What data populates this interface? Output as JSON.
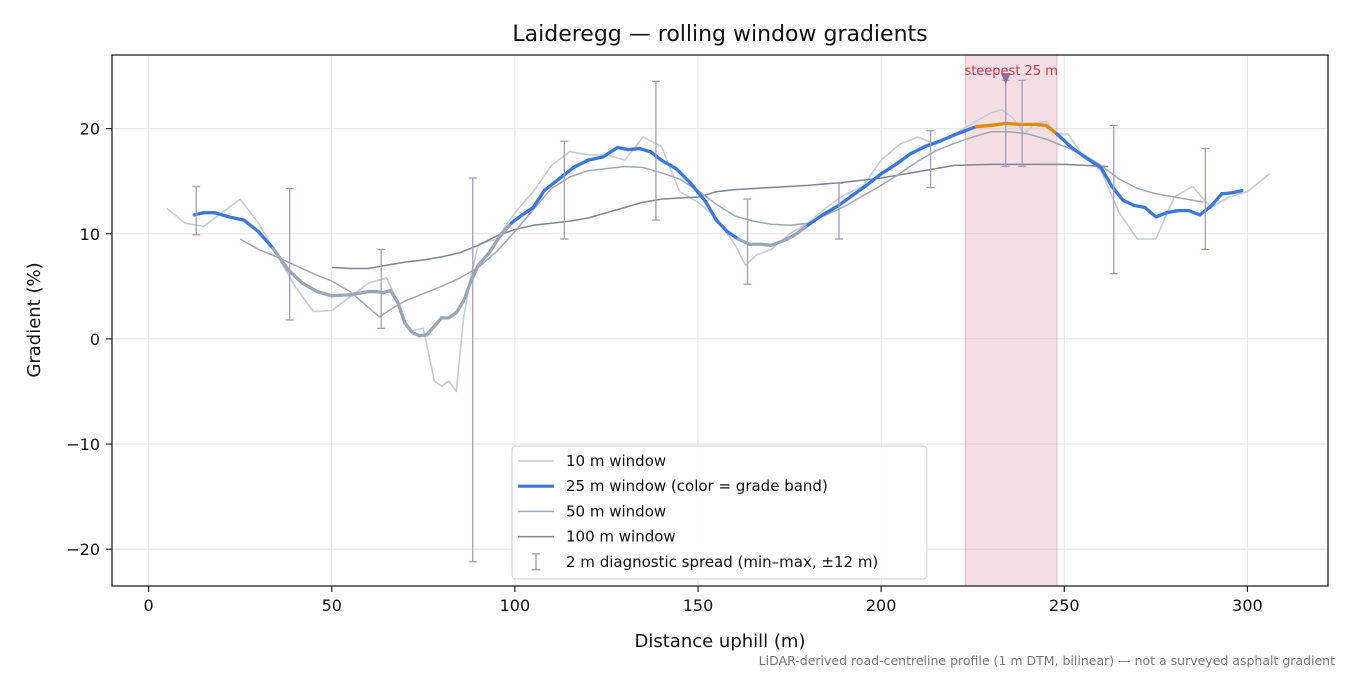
{
  "chart_data": {
    "type": "line",
    "title": "Laideregg — rolling window gradients",
    "xlabel": "Distance uphill (m)",
    "ylabel": "Gradient (%)",
    "xlim": [
      -10,
      322
    ],
    "ylim": [
      -23.5,
      27
    ],
    "x_ticks": [
      0,
      50,
      100,
      150,
      200,
      250,
      300
    ],
    "y_ticks": [
      -20,
      -10,
      0,
      10,
      20
    ],
    "x_tick_labels": [
      "0",
      "50",
      "100",
      "150",
      "200",
      "250",
      "300"
    ],
    "y_tick_labels": [
      "−20",
      "−10",
      "0",
      "10",
      "20"
    ],
    "grid": true,
    "legend_position": "lower-center",
    "footnote": "LiDAR-derived road-centreline profile (1 m DTM, bilinear) — not a surveyed asphalt gradient",
    "steepest_band": {
      "x_start": 223,
      "x_end": 248,
      "label": "steepest 25 m",
      "marker_x": 234,
      "marker_y": 24.8,
      "color": "#d9808f"
    },
    "colors": {
      "w10": "#c6cdd8",
      "w25_blue": "#3b78d8",
      "w25_grey": "#98a6b8",
      "w25_orange": "#e08a00",
      "w50": "#a2a7b8",
      "w100": "#7f8594",
      "errorbar": "#a49ac3",
      "annotation": "#c93a4f"
    },
    "legend": [
      {
        "label": "10 m window",
        "kind": "line",
        "color": "#c6cdd8",
        "width": 1.5
      },
      {
        "label": "25 m window (color = grade band)",
        "kind": "line",
        "color": "#3b78d8",
        "width": 3.2
      },
      {
        "label": "50 m window",
        "kind": "line",
        "color": "#a2a7b8",
        "width": 1.5
      },
      {
        "label": "100 m window",
        "kind": "line",
        "color": "#7f8594",
        "width": 1.5
      },
      {
        "label": "2 m diagnostic spread (min–max, ±12 m)",
        "kind": "errorbar",
        "color": "#a49ac3",
        "width": 1.3
      }
    ],
    "series": [
      {
        "name": "10 m window",
        "x": [
          5,
          10,
          15,
          20,
          25,
          30,
          35,
          40,
          45,
          50,
          55,
          60,
          65,
          68,
          70,
          72,
          75,
          78,
          80,
          82,
          84,
          86,
          88,
          90,
          95,
          100,
          105,
          110,
          115,
          120,
          125,
          130,
          135,
          140,
          145,
          150,
          155,
          160,
          163,
          166,
          170,
          175,
          180,
          185,
          190,
          195,
          200,
          205,
          210,
          215,
          220,
          225,
          230,
          233,
          236,
          239,
          242,
          245,
          248,
          251,
          255,
          260,
          265,
          270,
          275,
          280,
          285,
          290,
          295,
          300,
          306
        ],
        "y": [
          12.4,
          11,
          10.7,
          12,
          13.3,
          11,
          8,
          5,
          2.6,
          2.7,
          4,
          5.3,
          5.8,
          3.5,
          1.5,
          0.8,
          1,
          -4,
          -4.5,
          -4,
          -5,
          2,
          6,
          9,
          9.5,
          12,
          14,
          16.5,
          17.8,
          17.5,
          17.5,
          17,
          19.2,
          18.3,
          14,
          13,
          11.5,
          9,
          7,
          8,
          8.5,
          10,
          11,
          12.5,
          13.7,
          14.5,
          17,
          18.5,
          19.2,
          18.5,
          19.5,
          20.5,
          21.5,
          21.8,
          21,
          19.5,
          20.5,
          20.7,
          19.5,
          19.5,
          17.5,
          16,
          12,
          9.5,
          9.5,
          13.5,
          14.5,
          12.5,
          13.5,
          14,
          15.7
        ]
      },
      {
        "name": "25 m window",
        "x": [
          12.5,
          15,
          18,
          22,
          26,
          30,
          34,
          38,
          42,
          46,
          50,
          55,
          60,
          62,
          64,
          66,
          68,
          70,
          72,
          74,
          76,
          78,
          80,
          82,
          84,
          86,
          88,
          90,
          93,
          96,
          99,
          102,
          105,
          108,
          112,
          116,
          120,
          124,
          128,
          131,
          134,
          137,
          140,
          144,
          148,
          152,
          155,
          158,
          161,
          164,
          167,
          170,
          173,
          176,
          180,
          184,
          188,
          192,
          196,
          200,
          204,
          208,
          212,
          216,
          220,
          223,
          226,
          230,
          234,
          238,
          242,
          245,
          248,
          252,
          256,
          260,
          263,
          266,
          269,
          272,
          275,
          278,
          281,
          284,
          287,
          290,
          293,
          296,
          298.5
        ],
        "y": [
          11.8,
          12,
          12,
          11.6,
          11.3,
          10.2,
          8.6,
          6.6,
          5.3,
          4.5,
          4.1,
          4.2,
          4.5,
          4.5,
          4.4,
          4.6,
          3.5,
          1.5,
          0.6,
          0.3,
          0.4,
          1.2,
          2,
          2,
          2.5,
          3.6,
          5.5,
          7,
          8.2,
          9.8,
          11,
          11.8,
          12.5,
          14.1,
          15.2,
          16.3,
          17,
          17.3,
          18.2,
          18,
          18.1,
          17.8,
          17,
          16.2,
          14.8,
          13.1,
          11.3,
          10.2,
          9.5,
          9,
          9,
          8.9,
          9.3,
          9.8,
          10.8,
          11.8,
          12.6,
          13.6,
          14.6,
          15.7,
          16.6,
          17.6,
          18.3,
          18.8,
          19.4,
          19.8,
          20.2,
          20.3,
          20.5,
          20.4,
          20.4,
          20.3,
          19.5,
          18.2,
          17.2,
          16.3,
          14.5,
          13.2,
          12.7,
          12.5,
          11.6,
          12,
          12.2,
          12.2,
          11.8,
          12.6,
          13.8,
          13.9,
          14.1
        ],
        "band_colors": [
          "blue",
          "blue",
          "blue",
          "blue",
          "blue",
          "blue",
          "grey",
          "grey",
          "grey",
          "grey",
          "grey",
          "grey",
          "grey",
          "grey",
          "grey",
          "grey",
          "grey",
          "grey",
          "grey",
          "grey",
          "grey",
          "grey",
          "grey",
          "grey",
          "grey",
          "grey",
          "grey",
          "grey",
          "grey",
          "grey",
          "blue",
          "blue",
          "blue",
          "blue",
          "blue",
          "blue",
          "blue",
          "blue",
          "blue",
          "blue",
          "blue",
          "blue",
          "blue",
          "blue",
          "blue",
          "blue",
          "blue",
          "blue",
          "grey",
          "grey",
          "grey",
          "grey",
          "grey",
          "grey",
          "blue",
          "blue",
          "blue",
          "blue",
          "blue",
          "blue",
          "blue",
          "blue",
          "blue",
          "blue",
          "blue",
          "blue",
          "orange",
          "orange",
          "orange",
          "orange",
          "orange",
          "orange",
          "blue",
          "blue",
          "blue",
          "blue",
          "blue",
          "blue",
          "blue",
          "blue",
          "blue",
          "blue",
          "blue",
          "blue",
          "blue",
          "blue",
          "blue",
          "blue",
          "blue"
        ]
      },
      {
        "name": "50 m window",
        "x": [
          25,
          30,
          35,
          40,
          45,
          50,
          55,
          60,
          63,
          66,
          70,
          75,
          80,
          85,
          90,
          95,
          100,
          105,
          110,
          115,
          120,
          125,
          130,
          135,
          140,
          145,
          150,
          155,
          160,
          165,
          170,
          175,
          180,
          185,
          190,
          195,
          200,
          205,
          210,
          215,
          220,
          225,
          230,
          235,
          240,
          245,
          250,
          255,
          260,
          265,
          270,
          275,
          280,
          285,
          288
        ],
        "y": [
          9.5,
          8.5,
          7.8,
          7,
          6.2,
          5.5,
          4.5,
          3,
          2.1,
          2.8,
          3.6,
          4.3,
          5,
          5.8,
          6.8,
          8.3,
          10.2,
          12.3,
          14.3,
          15.4,
          16,
          16.2,
          16.4,
          16.3,
          15.8,
          15.2,
          14.1,
          12.8,
          11.7,
          11.2,
          10.9,
          10.8,
          11,
          11.8,
          12.6,
          13.6,
          14.6,
          15.7,
          16.9,
          17.9,
          18.6,
          19.2,
          19.7,
          19.7,
          19.5,
          19,
          18.3,
          17.6,
          16.5,
          15.2,
          14.3,
          13.8,
          13.5,
          13.2,
          13
        ]
      },
      {
        "name": "100 m window",
        "x": [
          50,
          55,
          60,
          65,
          70,
          75,
          80,
          85,
          90,
          95,
          100,
          105,
          110,
          115,
          120,
          125,
          130,
          135,
          140,
          145,
          150,
          155,
          160,
          170,
          180,
          190,
          200,
          210,
          220,
          230,
          240,
          250,
          262
        ],
        "y": [
          6.8,
          6.7,
          6.7,
          7,
          7.3,
          7.5,
          7.8,
          8.2,
          8.9,
          9.8,
          10.4,
          10.8,
          11,
          11.2,
          11.5,
          12,
          12.5,
          13,
          13.3,
          13.4,
          13.5,
          14,
          14.2,
          14.4,
          14.6,
          14.9,
          15.3,
          15.9,
          16.5,
          16.6,
          16.6,
          16.6,
          16.4
        ]
      }
    ],
    "error_bars": [
      {
        "x": 13,
        "min": 9.9,
        "max": 14.5
      },
      {
        "x": 38.5,
        "min": 1.8,
        "max": 14.3
      },
      {
        "x": 63.5,
        "min": 1,
        "max": 8.5
      },
      {
        "x": 88.5,
        "min": -21.2,
        "max": 15.3
      },
      {
        "x": 113.5,
        "min": 9.5,
        "max": 18.8
      },
      {
        "x": 138.5,
        "min": 11.3,
        "max": 24.5
      },
      {
        "x": 163.5,
        "min": 5.2,
        "max": 13.3
      },
      {
        "x": 188.5,
        "min": 9.5,
        "max": 14.8
      },
      {
        "x": 213.5,
        "min": 14.4,
        "max": 19.8
      },
      {
        "x": 234,
        "min": 16.4,
        "max": 24.6
      },
      {
        "x": 238.5,
        "min": 16.4,
        "max": 24.6
      },
      {
        "x": 263.5,
        "min": 6.2,
        "max": 20.3
      },
      {
        "x": 288.5,
        "min": 8.5,
        "max": 18.1
      }
    ]
  }
}
